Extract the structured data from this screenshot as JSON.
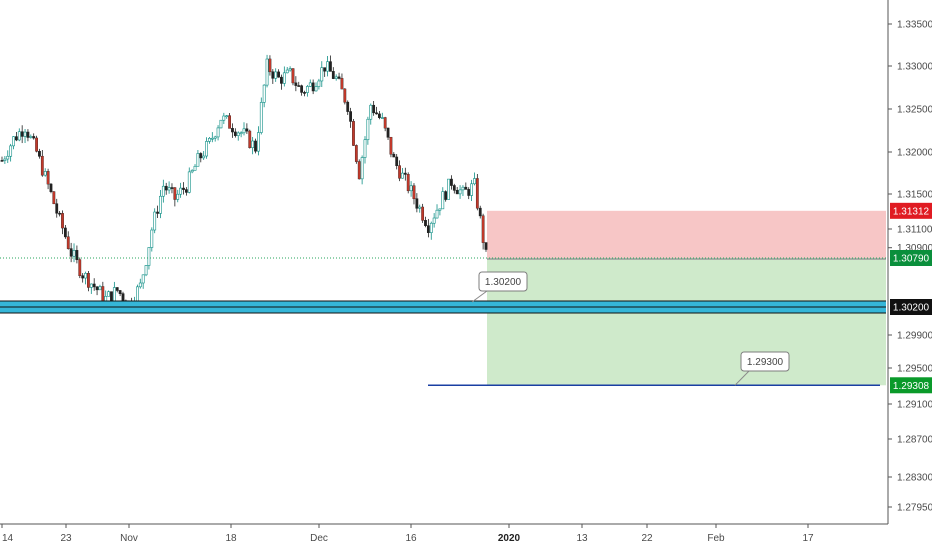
{
  "chart_data": {
    "type": "candlestick",
    "y_axis": {
      "range": [
        1.2765,
        1.3375
      ],
      "ticks": [
        "1.33500",
        "1.33000",
        "1.32500",
        "1.32000",
        "1.31500",
        "1.31100",
        "1.30900",
        "1.29900",
        "1.29500",
        "1.29100",
        "1.28700",
        "1.28300",
        "1.27950"
      ]
    },
    "x_axis": {
      "ticks": [
        {
          "label": "14"
        },
        {
          "label": "23"
        },
        {
          "label": "Nov"
        },
        {
          "label": "18"
        },
        {
          "label": "Dec"
        },
        {
          "label": "16"
        },
        {
          "label": "2020",
          "bold": true
        },
        {
          "label": "13"
        },
        {
          "label": "22"
        },
        {
          "label": "Feb"
        },
        {
          "label": "17"
        }
      ]
    },
    "candles_close_path": [
      1.319,
      1.3215,
      1.323,
      1.32,
      1.316,
      1.312,
      1.3085,
      1.306,
      1.3045,
      1.303,
      1.304,
      1.3025,
      1.3045,
      1.311,
      1.316,
      1.3145,
      1.316,
      1.319,
      1.321,
      1.324,
      1.323,
      1.322,
      1.3205,
      1.33,
      1.3285,
      1.329,
      1.327,
      1.328,
      1.33,
      1.3285,
      1.3255,
      1.3175,
      1.3255,
      1.3235,
      1.319,
      1.3165,
      1.314,
      1.3115,
      1.314,
      1.3165,
      1.315,
      1.316,
      1.308
    ],
    "price_tags": {
      "stop": {
        "text": "1.31312",
        "value": 1.31312,
        "color": "#e01b22"
      },
      "entry": {
        "text": "1.30790",
        "value": 1.3079,
        "color": "#0a8f3c"
      },
      "level": {
        "text": "1.30200",
        "value": 1.302,
        "color": "#111111"
      },
      "target": {
        "text": "1.29308",
        "value": 1.29308,
        "color": "#0a9a2a"
      }
    },
    "callouts": {
      "support": "1.30200",
      "target": "1.29300"
    },
    "zones": {
      "risk": {
        "top": 1.31312,
        "bottom": 1.3079,
        "color": "#f7c6c6"
      },
      "reward": {
        "top": 1.3079,
        "bottom": 1.29308,
        "color": "#cfeacb"
      }
    },
    "support_band": {
      "value": 1.302,
      "color": "#35b6d8"
    }
  }
}
